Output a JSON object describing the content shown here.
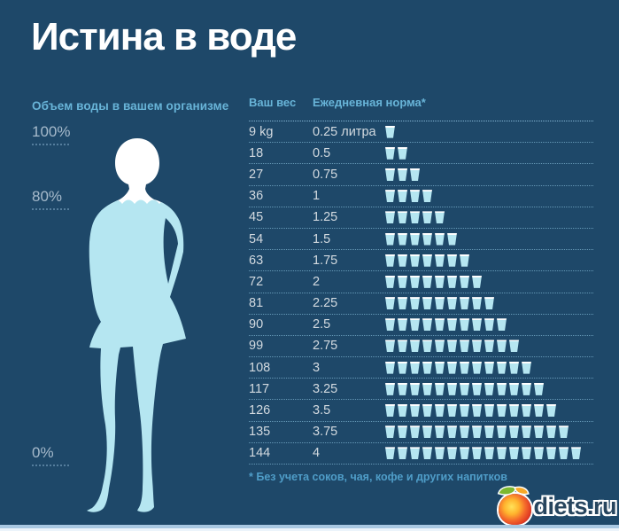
{
  "title": "Истина в воде",
  "left_panel": {
    "heading": "Объем воды в вашем организме",
    "scale": [
      {
        "label": "100%"
      },
      {
        "label": "80%"
      },
      {
        "label": "0%"
      }
    ]
  },
  "table": {
    "col_weight": "Ваш вес",
    "col_norm": "Ежедневная норма*",
    "rows": [
      {
        "weight": "9 kg",
        "norm": "0.25 литра",
        "cups": 1
      },
      {
        "weight": "18",
        "norm": "0.5",
        "cups": 2
      },
      {
        "weight": "27",
        "norm": "0.75",
        "cups": 3
      },
      {
        "weight": "36",
        "norm": "1",
        "cups": 4
      },
      {
        "weight": "45",
        "norm": "1.25",
        "cups": 5
      },
      {
        "weight": "54",
        "norm": "1.5",
        "cups": 6
      },
      {
        "weight": "63",
        "norm": "1.75",
        "cups": 7
      },
      {
        "weight": "72",
        "norm": "2",
        "cups": 8
      },
      {
        "weight": "81",
        "norm": "2.25",
        "cups": 9
      },
      {
        "weight": "90",
        "norm": "2.5",
        "cups": 10
      },
      {
        "weight": "99",
        "norm": "2.75",
        "cups": 11
      },
      {
        "weight": "108",
        "norm": "3",
        "cups": 12
      },
      {
        "weight": "117",
        "norm": "3.25",
        "cups": 13
      },
      {
        "weight": "126",
        "norm": "3.5",
        "cups": 14
      },
      {
        "weight": "135",
        "norm": "3.75",
        "cups": 15
      },
      {
        "weight": "144",
        "norm": "4",
        "cups": 16
      }
    ],
    "footnote": "* Без учета соков, чая, кофе и других напитков"
  },
  "logo": {
    "text": "diets.ru"
  },
  "colors": {
    "background": "#1e4869",
    "accent_blue": "#68b4d8",
    "water": "#b5e6f1",
    "figure_white": "#ffffff",
    "row_text": "#d3dae0",
    "scale_text": "#a6bacb",
    "footnote_text": "#4f9dc8"
  },
  "chart_data": {
    "type": "table",
    "title": "Истина в воде",
    "columns": [
      "Ваш вес",
      "Ежедневная норма*"
    ],
    "weights_kg": [
      9,
      18,
      27,
      36,
      45,
      54,
      63,
      72,
      81,
      90,
      99,
      108,
      117,
      126,
      135,
      144
    ],
    "norm_liters": [
      0.25,
      0.5,
      0.75,
      1,
      1.25,
      1.5,
      1.75,
      2,
      2.25,
      2.5,
      2.75,
      3,
      3.25,
      3.5,
      3.75,
      4
    ],
    "cup_pictogram_unit_liters": 0.25,
    "cups_per_row": [
      1,
      2,
      3,
      4,
      5,
      6,
      7,
      8,
      9,
      10,
      11,
      12,
      13,
      14,
      15,
      16
    ],
    "body_water_scale_percent": [
      100,
      80,
      0
    ],
    "footnote": "* Без учета соков, чая, кофе и других напитков"
  }
}
